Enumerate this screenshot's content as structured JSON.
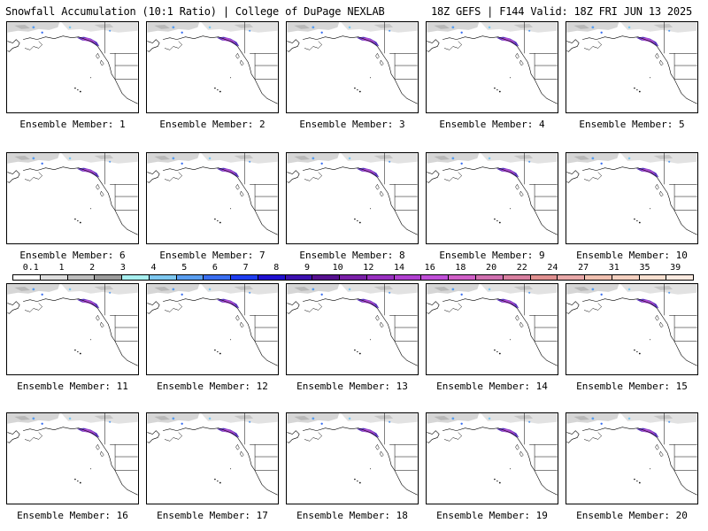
{
  "header": {
    "title_left": "Snowfall Accumulation (10:1 Ratio) | College of DuPage NEXLAB",
    "title_right": "18Z GEFS | F144 Valid: 18Z FRI JUN 13 2025"
  },
  "colorbar": {
    "labels": [
      "0.1",
      "1",
      "2",
      "3",
      "4",
      "5",
      "6",
      "7",
      "8",
      "9",
      "10",
      "12",
      "14",
      "16",
      "18",
      "20",
      "22",
      "24",
      "27",
      "31",
      "35",
      "39"
    ],
    "colors": [
      "#ffffff",
      "#dedede",
      "#bdbdbd",
      "#9b9b9b",
      "#a8f0f0",
      "#7ec8f0",
      "#5a9ef0",
      "#3a6ef0",
      "#1f3ef0",
      "#2010d0",
      "#3c10b0",
      "#561090",
      "#7a20a8",
      "#9830c0",
      "#b040d0",
      "#c050d8",
      "#d060c8",
      "#d070b0",
      "#d880a0",
      "#e09090",
      "#e8a8a8",
      "#f0c0b0",
      "#f4d0c0",
      "#f8e0d0",
      "#fceae0"
    ]
  },
  "members": [
    {
      "label": "Ensemble Member: 1"
    },
    {
      "label": "Ensemble Member: 2"
    },
    {
      "label": "Ensemble Member: 3"
    },
    {
      "label": "Ensemble Member: 4"
    },
    {
      "label": "Ensemble Member: 5"
    },
    {
      "label": "Ensemble Member: 6"
    },
    {
      "label": "Ensemble Member: 7"
    },
    {
      "label": "Ensemble Member: 8"
    },
    {
      "label": "Ensemble Member: 9"
    },
    {
      "label": "Ensemble Member: 10"
    },
    {
      "label": "Ensemble Member: 11"
    },
    {
      "label": "Ensemble Member: 12"
    },
    {
      "label": "Ensemble Member: 13"
    },
    {
      "label": "Ensemble Member: 14"
    },
    {
      "label": "Ensemble Member: 15"
    },
    {
      "label": "Ensemble Member: 16"
    },
    {
      "label": "Ensemble Member: 17"
    },
    {
      "label": "Ensemble Member: 18"
    },
    {
      "label": "Ensemble Member: 19"
    },
    {
      "label": "Ensemble Member: 20"
    }
  ]
}
